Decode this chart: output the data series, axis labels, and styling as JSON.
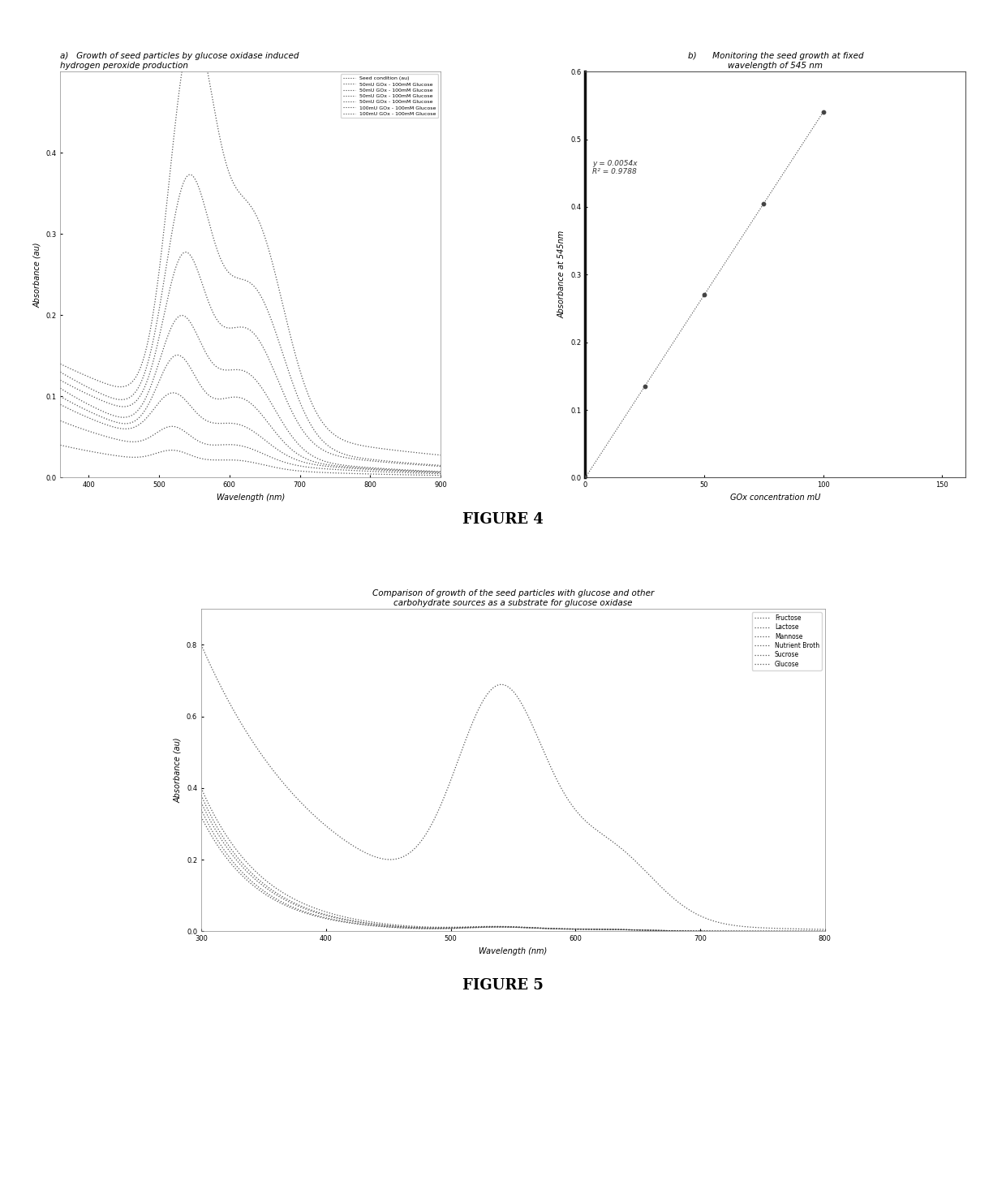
{
  "fig4a_title": "a)   Growth of seed particles by glucose oxidase induced\nhydrogen peroxide production",
  "fig4b_title": "b)      Monitoring the seed growth at fixed\nwavelength of 545 nm",
  "fig5_title": "Comparison of growth of the seed particles with glucose and other\ncarbohydrate sources as a substrate for glucose oxidase",
  "fig4a_xlabel": "Wavelength (nm)",
  "fig4a_ylabel": "Absorbance (au)",
  "fig4b_xlabel": "GOx concentration mU",
  "fig4b_ylabel": "Absorbance at 545nm",
  "fig5_xlabel": "Wavelength (nm)",
  "fig5_ylabel": "Absorbance (au)",
  "fig4a_xlim": [
    360,
    900
  ],
  "fig4a_ylim": [
    0.0,
    0.5
  ],
  "fig4b_xlim": [
    0,
    160
  ],
  "fig4b_ylim": [
    0.0,
    0.6
  ],
  "fig5_xlim": [
    300,
    800
  ],
  "fig5_ylim": [
    0.0,
    0.9
  ],
  "figure4_label": "FIGURE 4",
  "figure5_label": "FIGURE 5",
  "fig4a_legend": [
    "Seed condition (au)",
    "50mU GOx - 100mM Glucose",
    "50mU GOx - 100mM Glucose",
    "50mU GOx - 100mM Glucose",
    "50mU GOx - 100mM Glucose",
    "100mU GOx - 100mM Glucose",
    "100mU GOx - 100mM Glucose"
  ],
  "fig5_legend": [
    "Fructose",
    "Lactose",
    "Mannose",
    "Nutrient Broth",
    "Sucrose",
    "Glucose"
  ],
  "fig4b_equation": "y = 0.0054x\nR² = 0.9788",
  "background_color": "#ffffff"
}
